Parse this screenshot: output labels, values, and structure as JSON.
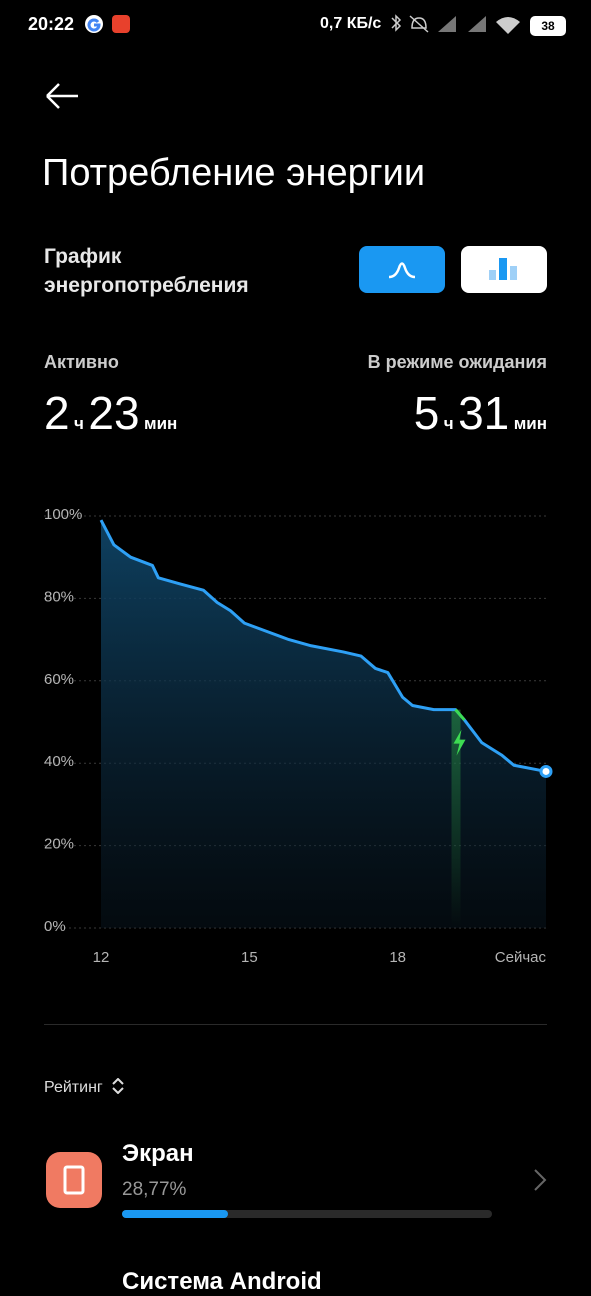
{
  "status_bar": {
    "time": "20:22",
    "speed": "0,7 КБ/с",
    "battery": "38"
  },
  "header": {
    "title": "Потребление энергии"
  },
  "section": {
    "title": "График энергопотребления"
  },
  "stats": {
    "active": {
      "label": "Активно",
      "hours": "2",
      "hours_unit": "ч",
      "minutes": "23",
      "minutes_unit": "мин"
    },
    "standby": {
      "label": "В режиме ожидания",
      "hours": "5",
      "hours_unit": "ч",
      "minutes": "31",
      "minutes_unit": "мин"
    }
  },
  "chart_data": {
    "type": "area",
    "x": [
      12.0,
      12.26,
      12.6,
      13.04,
      13.16,
      13.6,
      14.07,
      14.35,
      14.62,
      14.9,
      15.35,
      15.8,
      16.25,
      16.9,
      17.26,
      17.55,
      17.8,
      18.1,
      18.3,
      18.73,
      19.17,
      19.35,
      19.7,
      20.1,
      20.35,
      21.0
    ],
    "values": [
      99,
      93,
      90,
      88,
      85,
      83.5,
      82,
      79,
      77,
      74,
      72,
      70,
      68.5,
      67,
      66,
      63,
      62,
      56,
      54,
      53,
      53,
      50.5,
      45,
      42,
      39.5,
      38
    ],
    "color": "#2ea0f5",
    "xlim": [
      12,
      21
    ],
    "xticks": [
      12,
      15,
      18,
      {
        "value": 21,
        "label": "Сейчас"
      }
    ],
    "ylim": [
      0,
      100
    ],
    "yticks": [
      {
        "value": 0,
        "label": "0%"
      },
      {
        "value": 20,
        "label": "20%"
      },
      {
        "value": 40,
        "label": "40%"
      },
      {
        "value": 60,
        "label": "60%"
      },
      {
        "value": 80,
        "label": "80%"
      },
      {
        "value": 100,
        "label": "100%"
      }
    ],
    "grid": true,
    "charging": {
      "start": 19.17,
      "end": 19.35,
      "color": "#3ddc52"
    }
  },
  "ranking": {
    "label": "Рейтинг",
    "items": [
      {
        "name": "Экран",
        "value": 28.77,
        "value_label": "28,77%"
      },
      {
        "name": "Система Android"
      }
    ]
  }
}
